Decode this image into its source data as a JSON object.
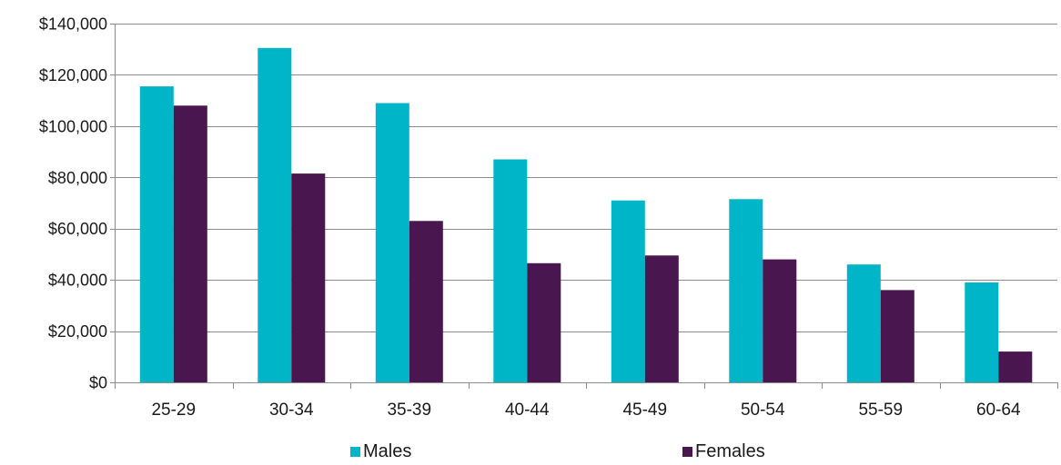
{
  "chart_data": {
    "type": "bar",
    "categories": [
      "25-29",
      "30-34",
      "35-39",
      "40-44",
      "45-49",
      "50-54",
      "55-59",
      "60-64"
    ],
    "series": [
      {
        "name": "Males",
        "color": "#00B5C8",
        "values": [
          115500,
          130500,
          109000,
          87000,
          71000,
          71500,
          46000,
          39000
        ]
      },
      {
        "name": "Females",
        "color": "#4A1650",
        "values": [
          108000,
          81500,
          63000,
          46500,
          49500,
          48000,
          36000,
          12000
        ]
      }
    ],
    "title": "",
    "xlabel": "",
    "ylabel": "",
    "ylim": [
      0,
      140000
    ],
    "yticks": [
      0,
      20000,
      40000,
      60000,
      80000,
      100000,
      120000,
      140000
    ],
    "ytick_labels": [
      "$0",
      "$20,000",
      "$40,000",
      "$60,000",
      "$80,000",
      "$100,000",
      "$120,000",
      "$140,000"
    ],
    "grid": true,
    "legend_position": "bottom"
  }
}
